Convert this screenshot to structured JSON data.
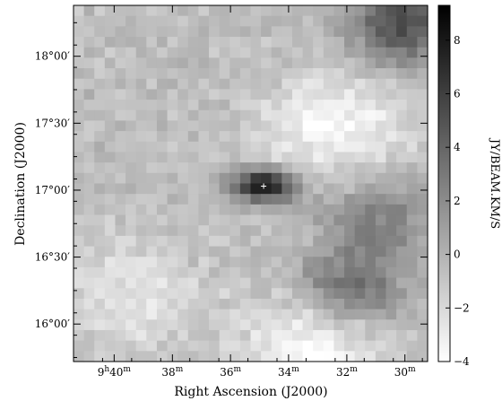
{
  "chart_data": {
    "type": "heatmap",
    "title": "",
    "xlabel": "Right Ascension (J2000)",
    "ylabel": "Declination (J2000)",
    "colorbar_label": "JY/BEAM.KM/S",
    "colormap": "gray-inverse",
    "color_range": [
      -4,
      9.3
    ],
    "colorbar_ticks": [
      -4,
      -2,
      0,
      2,
      4,
      6,
      8
    ],
    "colorbar_tick_labels": [
      "−4",
      "−2",
      "0",
      "2",
      "4",
      "6",
      "8"
    ],
    "x_axis": {
      "unit": "RA hours/minutes",
      "range_min": [
        9.69,
        9.487
      ],
      "ticks": [
        {
          "value_h": 9.6667,
          "label_main": "9",
          "sup1": "h",
          "label_min": "40",
          "sup2": "m"
        },
        {
          "value_h": 9.6333,
          "label_main": "38",
          "sup1": "m"
        },
        {
          "value_h": 9.6,
          "label_main": "36",
          "sup1": "m"
        },
        {
          "value_h": 9.5667,
          "label_main": "34",
          "sup1": "m"
        },
        {
          "value_h": 9.5333,
          "label_main": "32",
          "sup1": "m"
        },
        {
          "value_h": 9.5,
          "label_main": "30",
          "sup1": "m"
        }
      ]
    },
    "y_axis": {
      "unit": "Dec degrees",
      "range": [
        15.72,
        18.38
      ],
      "ticks": [
        {
          "value": 16.0,
          "label": "16°00′"
        },
        {
          "value": 16.5,
          "label": "16°30′"
        },
        {
          "value": 17.0,
          "label": "17°00′"
        },
        {
          "value": 17.5,
          "label": "17°30′"
        },
        {
          "value": 18.0,
          "label": "18°00′"
        }
      ]
    },
    "features": [
      {
        "kind": "peak",
        "ra_h": 9.581,
        "dec": 17.03,
        "value": 9.0
      },
      {
        "kind": "extended",
        "ra_h": 9.53,
        "dec": 16.25,
        "value": 4.5
      },
      {
        "kind": "extended",
        "ra_h": 9.5,
        "dec": 18.25,
        "value": 6.0
      },
      {
        "kind": "extended",
        "ra_h": 9.515,
        "dec": 16.8,
        "value": 3.0
      },
      {
        "kind": "deficit",
        "ra_h": 9.54,
        "dec": 17.5,
        "value": -3.0
      },
      {
        "kind": "deficit",
        "ra_h": 9.55,
        "dec": 15.85,
        "value": -3.5
      },
      {
        "kind": "deficit",
        "ra_h": 9.66,
        "dec": 16.2,
        "value": -2.0
      }
    ]
  }
}
